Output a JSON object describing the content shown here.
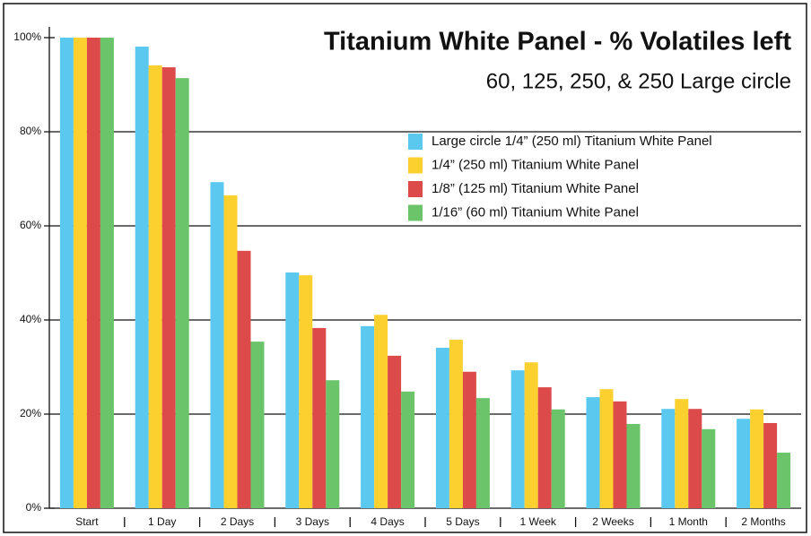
{
  "chart_data": {
    "type": "bar",
    "title": "Titanium White Panel - % Volatiles left",
    "subtitle": "60, 125, 250, & 250 Large circle",
    "categories": [
      "Start",
      "1 Day",
      "2 Days",
      "3 Days",
      "4 Days",
      "5 Days",
      "1 Week",
      "2 Weeks",
      "1 Month",
      "2 Months"
    ],
    "series": [
      {
        "name": "Large circle 1/4” (250 ml) Titanium White Panel",
        "color": "#5bc8ef",
        "values": [
          100,
          98.1,
          69.3,
          50.1,
          38.7,
          34.1,
          29.3,
          23.6,
          21.1,
          19.0
        ]
      },
      {
        "name": "1/4” (250 ml) Titanium White Panel",
        "color": "#fcd12f",
        "values": [
          100,
          94.1,
          66.5,
          49.5,
          41.1,
          35.8,
          31.0,
          25.3,
          23.2,
          21.0
        ]
      },
      {
        "name": "1/8” (125 ml) Titanium White Panel",
        "color": "#dd4a4a",
        "values": [
          100,
          93.7,
          54.7,
          38.3,
          32.4,
          29.0,
          25.7,
          22.7,
          21.1,
          18.1
        ]
      },
      {
        "name": "1/16” (60 ml) Titanium White Panel",
        "color": "#6cc46a",
        "values": [
          100,
          91.4,
          35.4,
          27.2,
          24.8,
          23.4,
          21.0,
          17.9,
          16.8,
          11.8
        ]
      }
    ],
    "ylim": [
      0,
      100
    ],
    "yticks": [
      {
        "value": 0,
        "label": "0%"
      },
      {
        "value": 20,
        "label": "20%"
      },
      {
        "value": 40,
        "label": "40%"
      },
      {
        "value": 60,
        "label": "60%"
      },
      {
        "value": 80,
        "label": "80%"
      },
      {
        "value": 100,
        "label": "100%"
      }
    ],
    "grid": true,
    "legend": "upper right"
  }
}
